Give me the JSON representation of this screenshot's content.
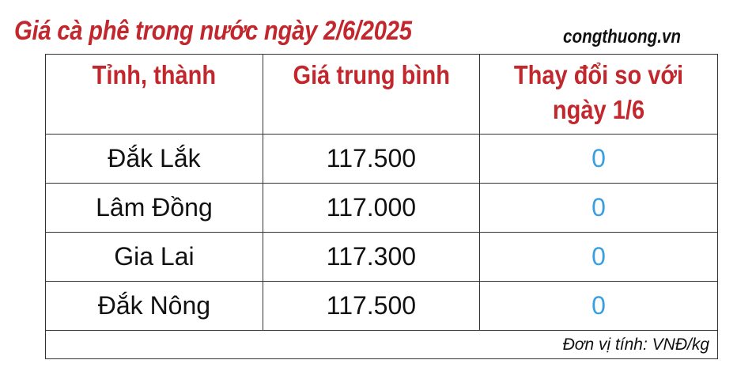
{
  "title": "Giá cà phê trong nước ngày 2/6/2025",
  "brand": "congthuong.vn",
  "table": {
    "headers": [
      "Tỉnh, thành",
      "Giá trung bình",
      "Thay đổi so với ngày 1/6"
    ],
    "rows": [
      {
        "province": "Đắk Lắk",
        "price": "117.500",
        "change": "0"
      },
      {
        "province": "Lâm Đồng",
        "price": "117.000",
        "change": "0"
      },
      {
        "province": "Gia Lai",
        "price": "117.300",
        "change": "0"
      },
      {
        "province": "Đắk Nông",
        "price": "117.500",
        "change": "0"
      }
    ],
    "unit_note": "Đơn vị tính: VNĐ/kg"
  },
  "colors": {
    "title": "#c1272d",
    "change": "#3a9fe0"
  }
}
